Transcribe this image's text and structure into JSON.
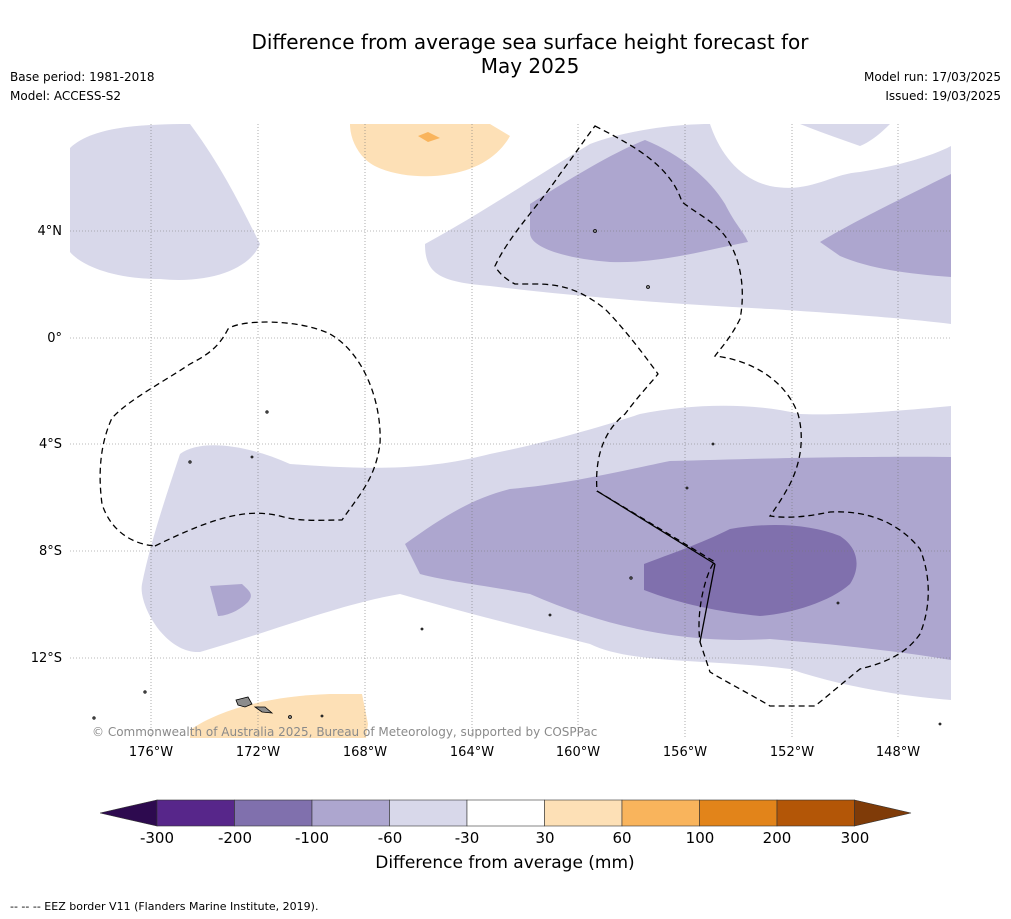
{
  "header": {
    "title_line1": "Difference from average sea surface height forecast for",
    "title_line2": "May 2025",
    "base_period": "Base period: 1981-2018",
    "model": "Model: ACCESS-S2",
    "model_run": "Model run: 17/03/2025",
    "issued": "Issued: 19/03/2025"
  },
  "map": {
    "lat_labels": [
      "4°N",
      "0°",
      "4°S",
      "8°S",
      "12°S"
    ],
    "lon_labels": [
      "176°W",
      "172°W",
      "168°W",
      "164°W",
      "160°W",
      "156°W",
      "152°W",
      "148°W"
    ],
    "copyright": "© Commonwealth of Australia 2025, Bureau of Meteorology, supported by COSPPac",
    "border_line": "dashed",
    "land_color": "#8c8c8c"
  },
  "colorbar": {
    "ticks": [
      "-300",
      "-200",
      "-100",
      "-60",
      "-30",
      "30",
      "60",
      "100",
      "200",
      "300"
    ],
    "colors": [
      "#2d0a4f",
      "#57268a",
      "#8070ad",
      "#ada6cf",
      "#d8d8ea",
      "#ffffff",
      "#fde0b6",
      "#f9b45c",
      "#e2841a",
      "#b35607",
      "#7f3b08"
    ],
    "label": "Difference from average (mm)"
  },
  "footer": {
    "note": "--  --  -- EEZ border V11 (Flanders Marine Institute, 2019)."
  }
}
